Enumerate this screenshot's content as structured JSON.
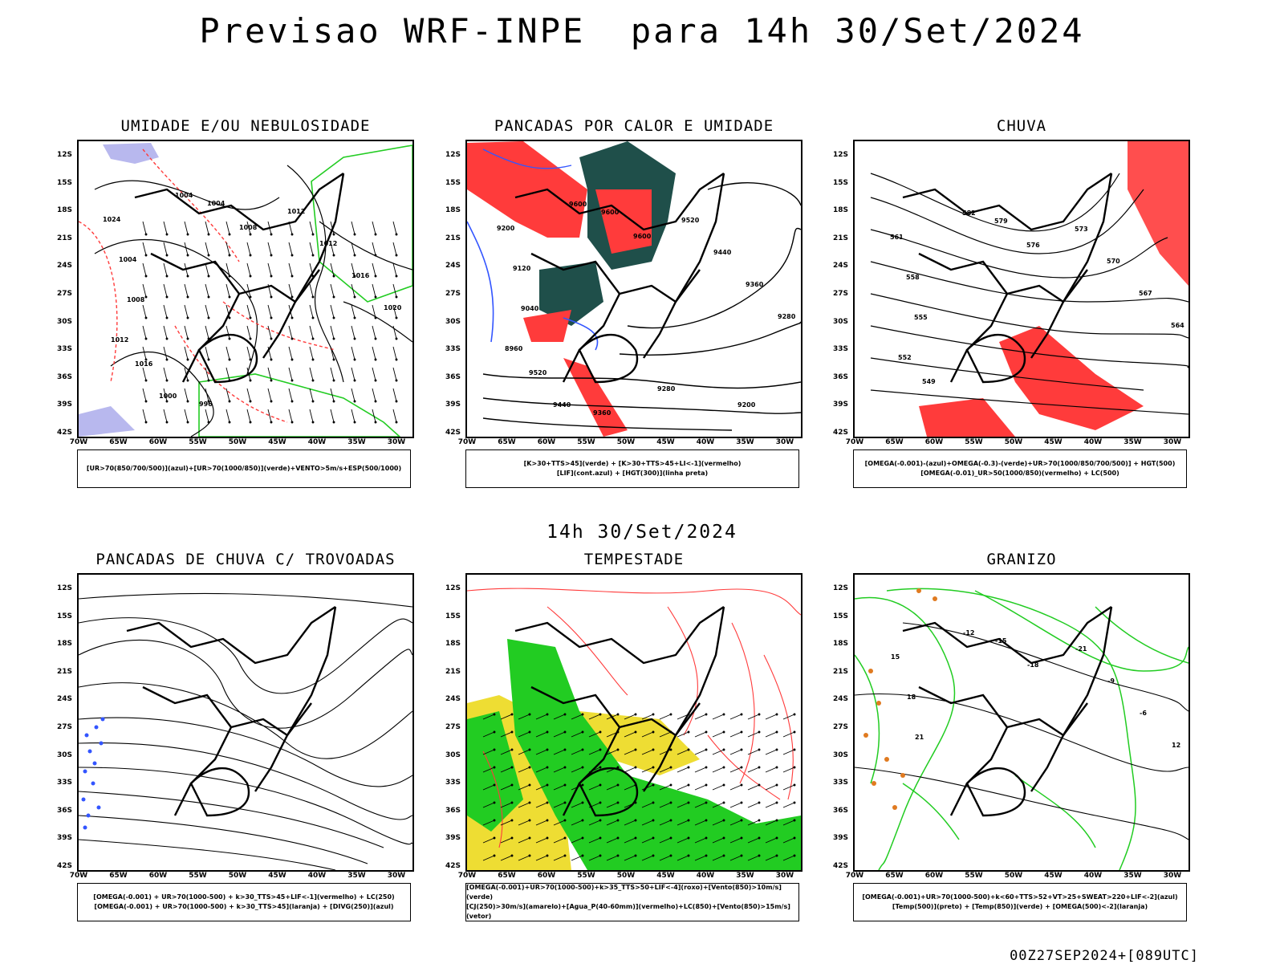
{
  "title": "Previsao WRF-INPE  para 14h 30/Set/2024",
  "mid_title": "14h 30/Set/2024",
  "footer": "00Z27SEP2024+[089UTC]",
  "lat_labels": [
    "12S",
    "15S",
    "18S",
    "21S",
    "24S",
    "27S",
    "30S",
    "33S",
    "36S",
    "39S",
    "42S"
  ],
  "lon_labels": [
    "70W",
    "65W",
    "60W",
    "55W",
    "50W",
    "45W",
    "40W",
    "35W",
    "30W"
  ],
  "colors": {
    "red": "#ff3b3b",
    "green": "#22cc22",
    "blue": "#3355ff",
    "lavender": "#b8b8ee",
    "yellow": "#eedd33",
    "teal": "#1f4f4a",
    "orange": "#e07a20"
  },
  "panels": [
    {
      "title": "UMIDADE E/OU NEBULOSIDADE",
      "legend": [
        "[UR>70(850/700/500)](azul)+[UR>70(1000/850)](verde)+VENTO>5m/s+ESP(500/1000)"
      ],
      "contour_labels": [
        "1004",
        "1004",
        "1008",
        "1012",
        "1012",
        "1016",
        "1020",
        "1024",
        "1004",
        "1008",
        "1012",
        "1016",
        "1000",
        "996"
      ]
    },
    {
      "title": "PANCADAS POR CALOR E UMIDADE",
      "legend": [
        "[K>30+TTS>45](verde) + [K>30+TTS>45+LI<-1](vermelho)",
        "[LIF](cont.azul) + [HGT(300)](linha preta)"
      ],
      "contour_labels": [
        "9600",
        "9600",
        "9600",
        "9520",
        "9440",
        "9360",
        "9280",
        "9200",
        "9120",
        "9040",
        "8960",
        "9520",
        "9440",
        "9360",
        "9280",
        "9200"
      ]
    },
    {
      "title": "CHUVA",
      "legend": [
        "[OMEGA(-0.001)-(azul)+OMEGA(-0.3)-(verde)+UR>70(1000/850/700/500)] + HGT(500)",
        "[OMEGA(-0.01)_UR>50(1000/850)(vermelho) + LC(500)"
      ],
      "contour_labels": [
        "582",
        "579",
        "576",
        "573",
        "570",
        "567",
        "564",
        "561",
        "558",
        "555",
        "552",
        "549"
      ]
    },
    {
      "title": "PANCADAS DE CHUVA C/ TROVOADAS",
      "legend": [
        "[OMEGA(-0.001) + UR>70(1000-500) + k>30_TTS>45+LIF<-1](vermelho) + LC(250)",
        "[OMEGA(-0.001) + UR>70(1000-500) + k>30_TTS>45](laranja) + [DIVG(250)](azul)"
      ],
      "contour_labels": []
    },
    {
      "title": "TEMPESTADE",
      "legend": [
        "[OMEGA(-0.001)+UR>70(1000-500)+k>35_TTS>50+LIF<-4](roxo)+[Vento(850)>10m/s](verde)",
        "[CJ(250)>30m/s](amarelo)+[Agua_P(40-60mm)](vermelho)+LC(850)+[Vento(850)>15m/s](vetor)"
      ],
      "contour_labels": []
    },
    {
      "title": "GRANIZO",
      "legend": [
        "[OMEGA(-0.001)+UR>70(1000-500)+k<60+TTS>52+VT>25+SWEAT>220+LIF<-2](azul)",
        "[Temp(500)](preto) + [Temp(850)](verde) + [OMEGA(500)<-2](laranja)"
      ],
      "contour_labels": [
        "-12",
        "-15",
        "-18",
        "-21",
        "-9",
        "-6",
        "12",
        "15",
        "18",
        "21"
      ]
    }
  ]
}
